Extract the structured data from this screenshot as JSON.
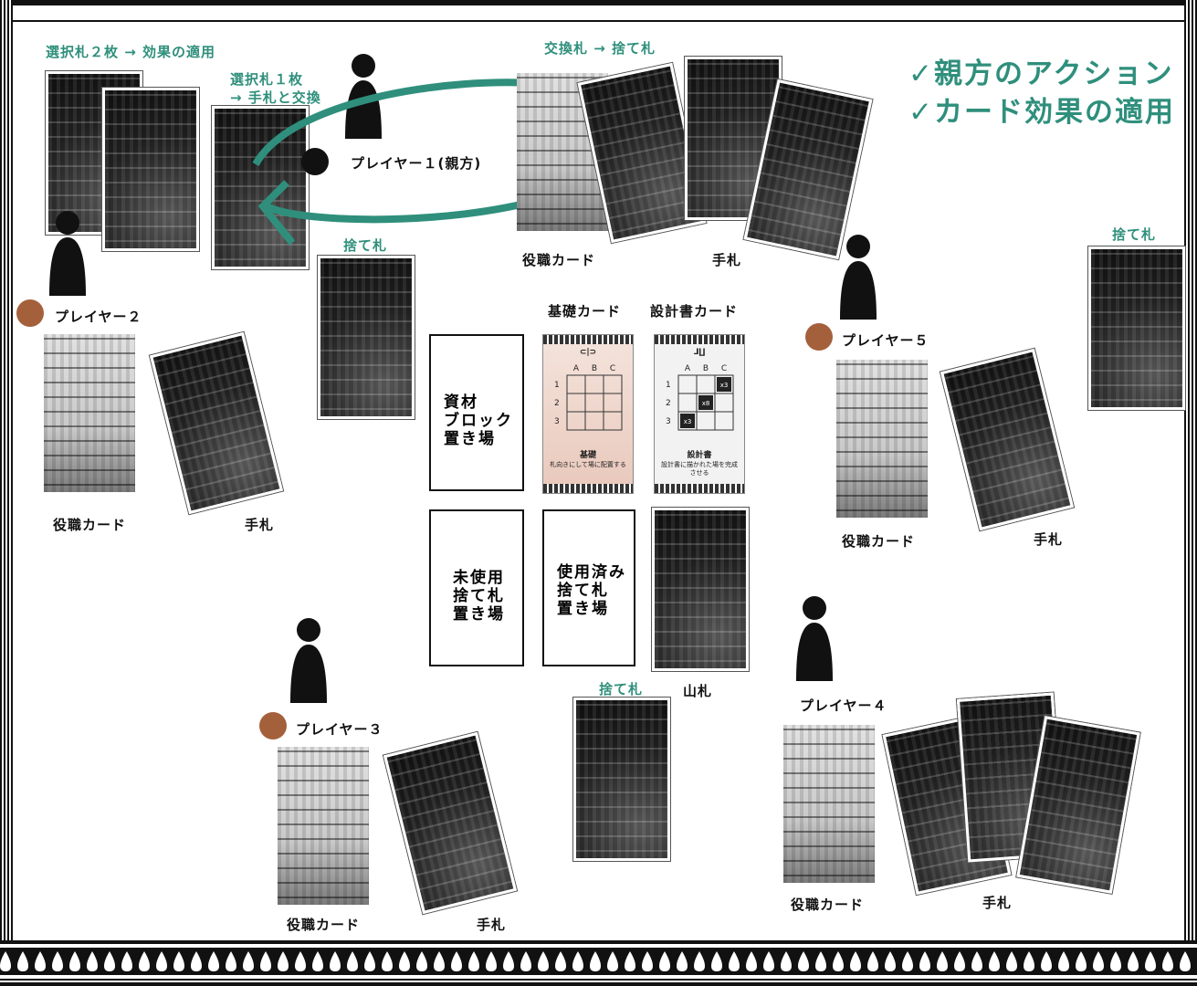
{
  "title": {
    "line1": "✓親方のアクション",
    "line2": "✓カード効果の適用"
  },
  "colors": {
    "accent": "#2f8f7c",
    "token": "#a4603b",
    "ink": "#111111"
  },
  "annotations": {
    "select_two": "選択札２枚 → 効果の適用",
    "select_one_line1": "選択札１枚",
    "select_one_line2": "→ 手札と交換",
    "exchange": "交換札 → 捨て札"
  },
  "players": {
    "p1": {
      "name": "プレイヤー１(親方)",
      "role_card": "役職カード",
      "hand": "手札"
    },
    "p2": {
      "name": "プレイヤー２",
      "role_card": "役職カード",
      "hand": "手札"
    },
    "p3": {
      "name": "プレイヤー３",
      "role_card": "役職カード",
      "hand": "手札"
    },
    "p4": {
      "name": "プレイヤー４",
      "role_card": "役職カード",
      "hand": "手札"
    },
    "p5": {
      "name": "プレイヤー５",
      "role_card": "役職カード",
      "hand": "手札"
    }
  },
  "discards": {
    "top": "捨て札",
    "right": "捨て札",
    "center": "捨て札"
  },
  "center": {
    "basic_card_label": "基礎カード",
    "blueprint_card_label": "設計書カード",
    "deck_label": "山札",
    "zone_materials": [
      "資材",
      "ブロック",
      "置き場"
    ],
    "zone_unused": [
      "未使用",
      "捨て札",
      "置き場"
    ],
    "zone_used": [
      "使用済み",
      "捨て札",
      "置き場"
    ],
    "basic_card": {
      "cols": [
        "A",
        "B",
        "C"
      ],
      "rows": [
        "1",
        "2",
        "3"
      ],
      "name": "基礎",
      "text": "札向きにして場に配置する"
    },
    "blueprint_card": {
      "cols": [
        "A",
        "B",
        "C"
      ],
      "rows": [
        "1",
        "2",
        "3"
      ],
      "blocks": [
        "x3",
        "x8",
        "x3"
      ],
      "name": "設計書",
      "text": "設計書に描かれた場を完成させる"
    }
  }
}
